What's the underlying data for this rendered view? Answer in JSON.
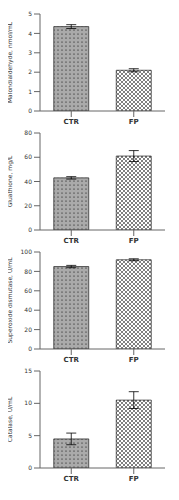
{
  "chart_data": [
    {
      "type": "bar",
      "ylabel": "Malondialdehyde, nmol/mL",
      "categories": [
        "CTR",
        "FP"
      ],
      "values": [
        4.35,
        2.1
      ],
      "errors": [
        0.1,
        0.08
      ],
      "colors": [
        "#aaaaaa",
        "#ffffff"
      ],
      "ylim": [
        0,
        5
      ],
      "yticks": [
        0,
        1,
        2,
        3,
        4,
        5
      ]
    },
    {
      "type": "bar",
      "ylabel": "Gluathione, mg/L",
      "categories": [
        "CTR",
        "FP"
      ],
      "values": [
        43.0,
        61.0
      ],
      "errors": [
        1.0,
        4.5
      ],
      "colors": [
        "#aaaaaa",
        "#ffffff"
      ],
      "ylim": [
        0,
        80
      ],
      "yticks": [
        0,
        20,
        40,
        60,
        80
      ]
    },
    {
      "type": "bar",
      "ylabel": "Superoxide dismutase, U/mL",
      "categories": [
        "CTR",
        "FP"
      ],
      "values": [
        85.0,
        92.0
      ],
      "errors": [
        1.2,
        1.0
      ],
      "colors": [
        "#aaaaaa",
        "#ffffff"
      ],
      "ylim": [
        0,
        100
      ],
      "yticks": [
        0,
        20,
        40,
        60,
        80,
        100
      ]
    },
    {
      "type": "bar",
      "ylabel": "Catalase, U/mL",
      "categories": [
        "CTR",
        "FP"
      ],
      "values": [
        4.5,
        10.5
      ],
      "errors": [
        0.9,
        1.3
      ],
      "colors": [
        "#aaaaaa",
        "#ffffff"
      ],
      "ylim": [
        0,
        15
      ],
      "yticks": [
        0,
        5,
        10,
        15
      ]
    }
  ]
}
